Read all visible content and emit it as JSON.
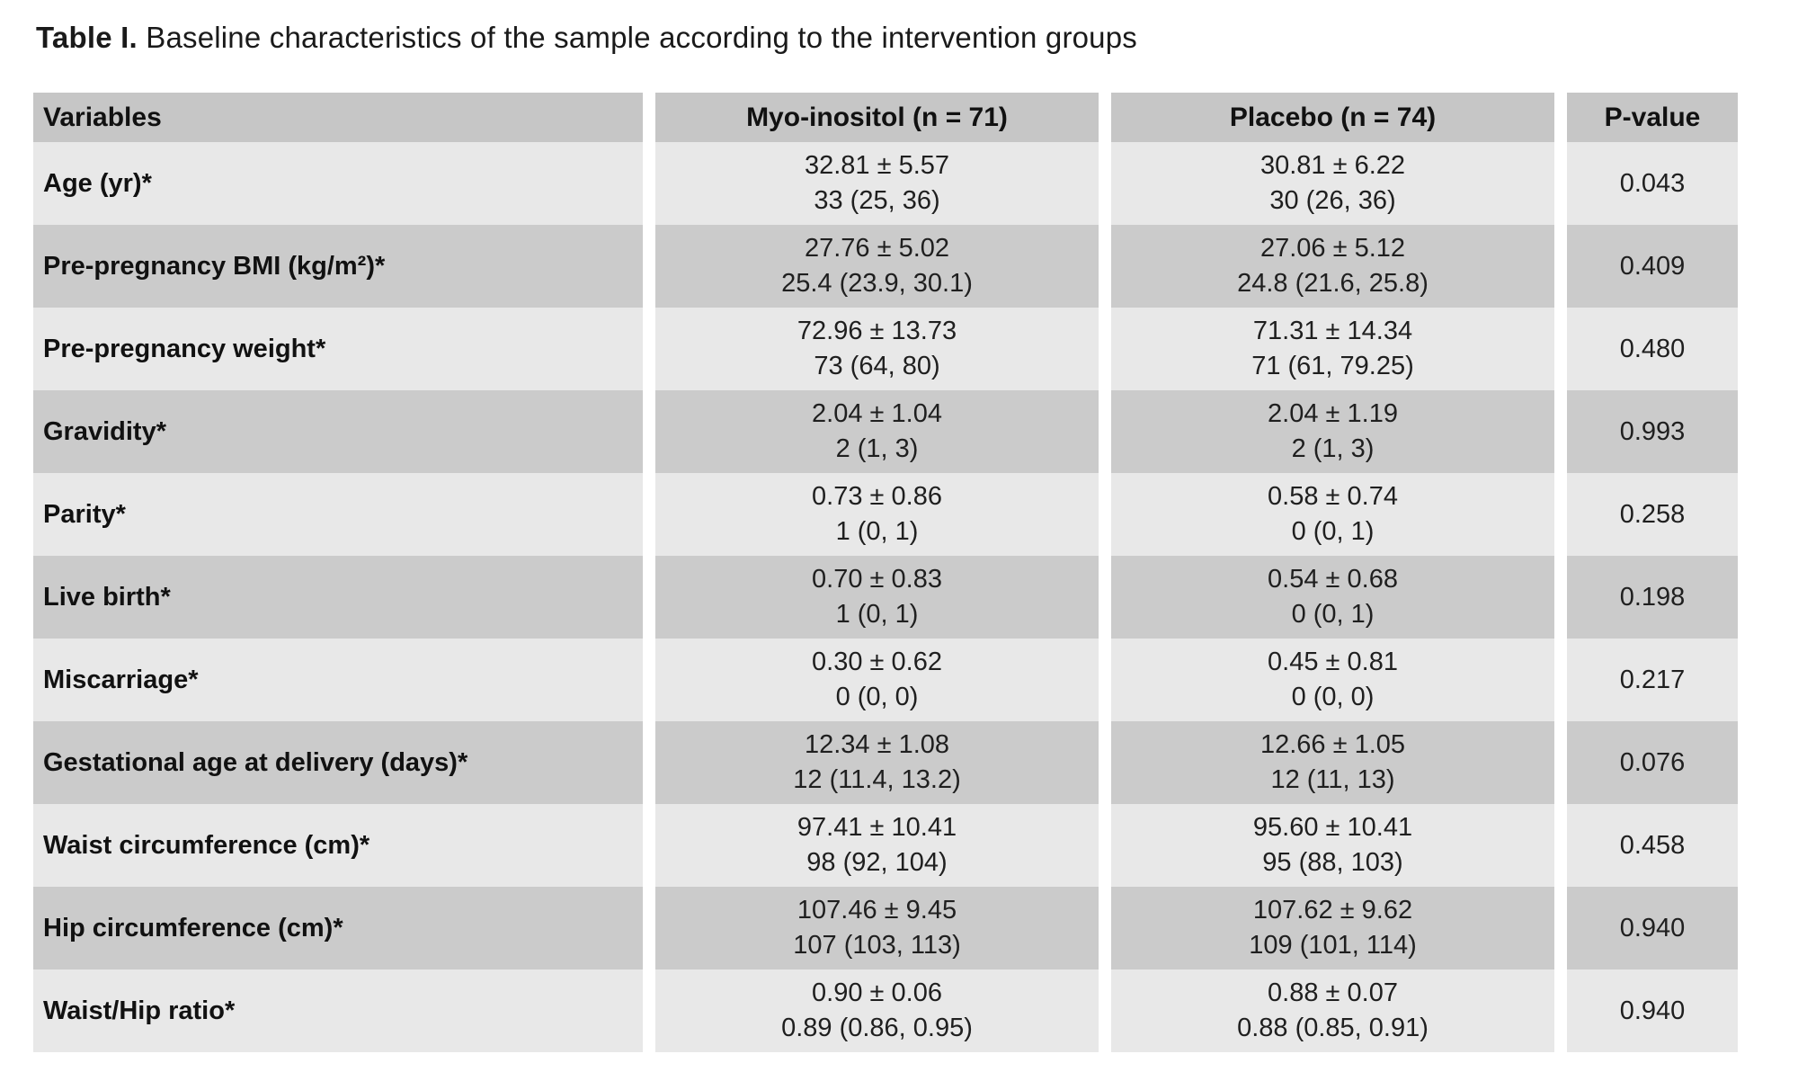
{
  "title": {
    "prefix": "Table I.",
    "text": " Baseline characteristics of the sample according to the intervention groups"
  },
  "table": {
    "columns": [
      "Variables",
      "Myo-inositol (n = 71)",
      "Placebo (n = 74)",
      "P-value"
    ],
    "rows": [
      {
        "variable": "Age (yr)*",
        "myo_mean": "32.81 ± 5.57",
        "myo_median": "33 (25, 36)",
        "placebo_mean": "30.81 ± 6.22",
        "placebo_median": "30 (26, 36)",
        "p_value": "0.043"
      },
      {
        "variable": "Pre-pregnancy BMI (kg/m²)*",
        "myo_mean": "27.76 ± 5.02",
        "myo_median": "25.4 (23.9, 30.1)",
        "placebo_mean": "27.06 ± 5.12",
        "placebo_median": "24.8 (21.6, 25.8)",
        "p_value": "0.409"
      },
      {
        "variable": "Pre-pregnancy weight*",
        "myo_mean": "72.96 ± 13.73",
        "myo_median": "73 (64, 80)",
        "placebo_mean": "71.31 ± 14.34",
        "placebo_median": "71 (61, 79.25)",
        "p_value": "0.480"
      },
      {
        "variable": "Gravidity*",
        "myo_mean": "2.04 ± 1.04",
        "myo_median": "2 (1, 3)",
        "placebo_mean": "2.04 ± 1.19",
        "placebo_median": "2 (1, 3)",
        "p_value": "0.993"
      },
      {
        "variable": "Parity*",
        "myo_mean": "0.73 ± 0.86",
        "myo_median": "1 (0, 1)",
        "placebo_mean": "0.58 ± 0.74",
        "placebo_median": "0 (0, 1)",
        "p_value": "0.258"
      },
      {
        "variable": "Live birth*",
        "myo_mean": "0.70 ± 0.83",
        "myo_median": "1 (0, 1)",
        "placebo_mean": "0.54 ± 0.68",
        "placebo_median": "0 (0, 1)",
        "p_value": "0.198"
      },
      {
        "variable": "Miscarriage*",
        "myo_mean": "0.30 ± 0.62",
        "myo_median": "0 (0, 0)",
        "placebo_mean": "0.45 ± 0.81",
        "placebo_median": "0 (0, 0)",
        "p_value": "0.217"
      },
      {
        "variable": "Gestational age at delivery (days)*",
        "myo_mean": "12.34 ± 1.08",
        "myo_median": "12 (11.4, 13.2)",
        "placebo_mean": "12.66 ± 1.05",
        "placebo_median": "12 (11, 13)",
        "p_value": "0.076"
      },
      {
        "variable": "Waist circumference (cm)*",
        "myo_mean": "97.41 ± 10.41",
        "myo_median": "98 (92, 104)",
        "placebo_mean": "95.60 ± 10.41",
        "placebo_median": "95 (88, 103)",
        "p_value": "0.458"
      },
      {
        "variable": "Hip circumference (cm)*",
        "myo_mean": "107.46 ± 9.45",
        "myo_median": "107 (103, 113)",
        "placebo_mean": "107.62 ± 9.62",
        "placebo_median": "109 (101, 114)",
        "p_value": "0.940"
      },
      {
        "variable": "Waist/Hip ratio*",
        "myo_mean": "0.90 ± 0.06",
        "myo_median": "0.89 (0.86, 0.95)",
        "placebo_mean": "0.88 ± 0.07",
        "placebo_median": "0.88 (0.85, 0.91)",
        "p_value": "0.940"
      }
    ]
  }
}
